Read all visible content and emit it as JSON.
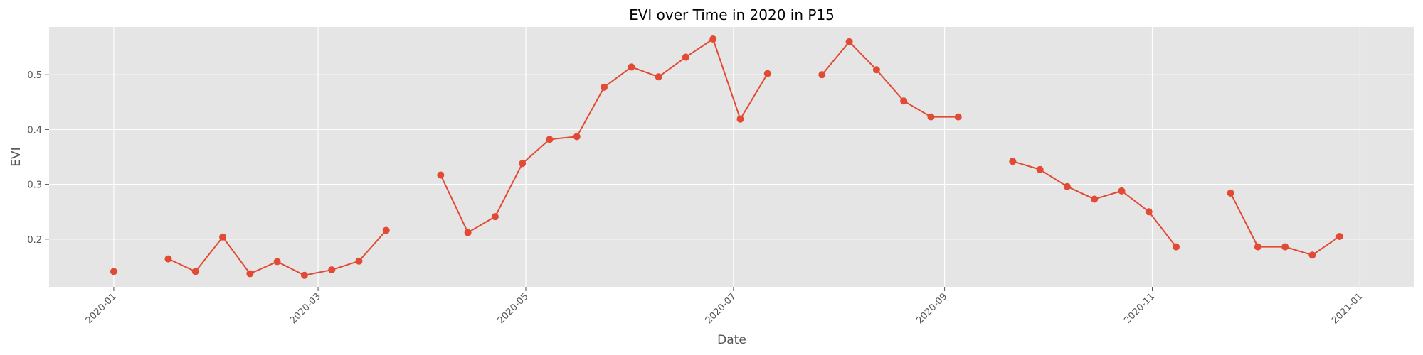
{
  "chart_data": {
    "type": "line",
    "title": "EVI over Time in 2020 in P15",
    "xlabel": "Date",
    "ylabel": "EVI",
    "x_axis": "date",
    "xlim": [
      "2019-12-13",
      "2021-01-17"
    ],
    "ylim": [
      0.113,
      0.587
    ],
    "grid": true,
    "legend": "none",
    "x_ticks": [
      "2020-01",
      "2020-03",
      "2020-05",
      "2020-07",
      "2020-09",
      "2020-11",
      "2021-01"
    ],
    "y_ticks": [
      "0.2",
      "0.3",
      "0.4",
      "0.5"
    ],
    "colors": {
      "series": "#E24A33",
      "plot_background": "#E5E5E5",
      "grid": "#FFFFFF",
      "text": "#555555"
    },
    "series": [
      {
        "points": [
          {
            "x": "2020-01-01",
            "y": 0.141
          },
          {
            "x": "2020-01-09",
            "y": null
          },
          {
            "x": "2020-01-17",
            "y": 0.164
          },
          {
            "x": "2020-01-25",
            "y": 0.141
          },
          {
            "x": "2020-02-02",
            "y": 0.204
          },
          {
            "x": "2020-02-10",
            "y": 0.137
          },
          {
            "x": "2020-02-18",
            "y": 0.159
          },
          {
            "x": "2020-02-26",
            "y": 0.134
          },
          {
            "x": "2020-03-05",
            "y": 0.144
          },
          {
            "x": "2020-03-13",
            "y": 0.16
          },
          {
            "x": "2020-03-21",
            "y": 0.216
          },
          {
            "x": "2020-03-29",
            "y": null
          },
          {
            "x": "2020-04-06",
            "y": 0.317
          },
          {
            "x": "2020-04-14",
            "y": 0.212
          },
          {
            "x": "2020-04-22",
            "y": 0.241
          },
          {
            "x": "2020-04-30",
            "y": 0.338
          },
          {
            "x": "2020-05-08",
            "y": 0.382
          },
          {
            "x": "2020-05-16",
            "y": 0.387
          },
          {
            "x": "2020-05-24",
            "y": 0.477
          },
          {
            "x": "2020-06-01",
            "y": 0.514
          },
          {
            "x": "2020-06-09",
            "y": 0.496
          },
          {
            "x": "2020-06-17",
            "y": 0.532
          },
          {
            "x": "2020-06-25",
            "y": 0.565
          },
          {
            "x": "2020-07-03",
            "y": 0.419
          },
          {
            "x": "2020-07-11",
            "y": 0.502
          },
          {
            "x": "2020-07-19",
            "y": null
          },
          {
            "x": "2020-07-27",
            "y": 0.5
          },
          {
            "x": "2020-08-04",
            "y": 0.56
          },
          {
            "x": "2020-08-12",
            "y": 0.509
          },
          {
            "x": "2020-08-20",
            "y": 0.452
          },
          {
            "x": "2020-08-28",
            "y": 0.423
          },
          {
            "x": "2020-09-05",
            "y": 0.423
          },
          {
            "x": "2020-09-13",
            "y": null
          },
          {
            "x": "2020-09-21",
            "y": 0.342
          },
          {
            "x": "2020-09-29",
            "y": 0.327
          },
          {
            "x": "2020-10-07",
            "y": 0.296
          },
          {
            "x": "2020-10-15",
            "y": 0.273
          },
          {
            "x": "2020-10-23",
            "y": 0.288
          },
          {
            "x": "2020-10-31",
            "y": 0.25
          },
          {
            "x": "2020-11-08",
            "y": 0.186
          },
          {
            "x": "2020-11-16",
            "y": null
          },
          {
            "x": "2020-11-24",
            "y": 0.284
          },
          {
            "x": "2020-12-02",
            "y": 0.186
          },
          {
            "x": "2020-12-10",
            "y": 0.186
          },
          {
            "x": "2020-12-18",
            "y": 0.171
          },
          {
            "x": "2020-12-26",
            "y": 0.205
          }
        ]
      }
    ]
  }
}
